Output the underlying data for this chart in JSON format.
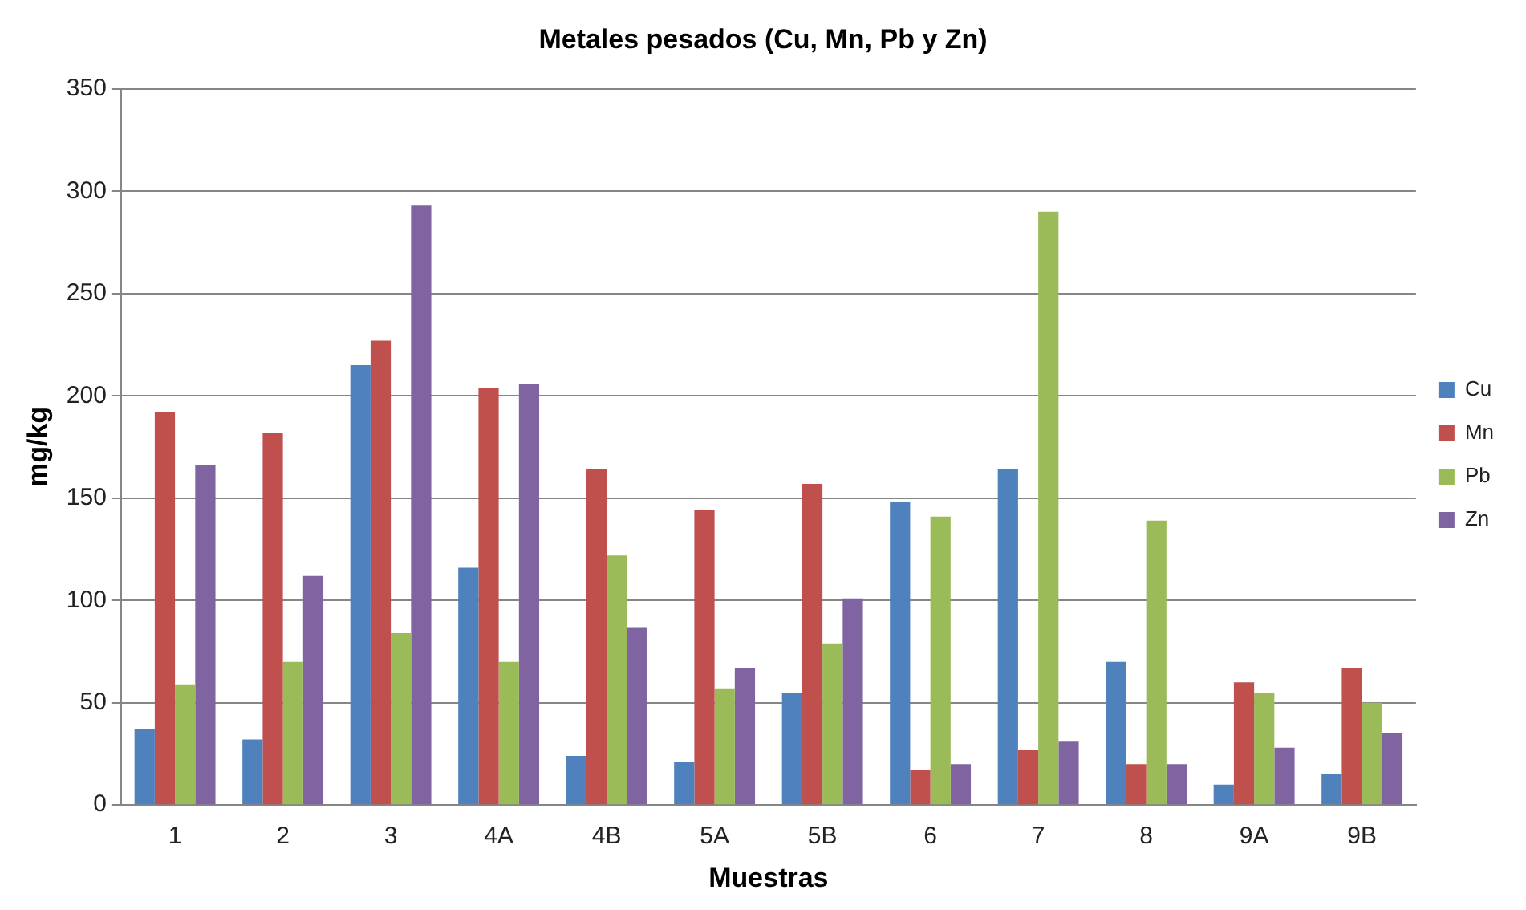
{
  "chart_data": {
    "type": "bar",
    "title": "Metales pesados (Cu, Mn, Pb y Zn)",
    "xlabel": "Muestras",
    "ylabel": "mg/kg",
    "categories": [
      "1",
      "2",
      "3",
      "4A",
      "4B",
      "5A",
      "5B",
      "6",
      "7",
      "8",
      "9A",
      "9B"
    ],
    "series": [
      {
        "name": "Cu",
        "color": "#4f81bd",
        "values": [
          37,
          32,
          215,
          116,
          24,
          21,
          55,
          148,
          164,
          70,
          10,
          15
        ]
      },
      {
        "name": "Mn",
        "color": "#c0504d",
        "values": [
          192,
          182,
          227,
          204,
          164,
          144,
          157,
          17,
          27,
          20,
          60,
          67
        ]
      },
      {
        "name": "Pb",
        "color": "#9bbb59",
        "values": [
          59,
          70,
          84,
          70,
          122,
          57,
          79,
          141,
          290,
          139,
          55,
          50
        ]
      },
      {
        "name": "Zn",
        "color": "#8064a2",
        "values": [
          166,
          112,
          293,
          206,
          87,
          67,
          101,
          20,
          31,
          20,
          28,
          35
        ]
      }
    ],
    "ylim": [
      0,
      350
    ],
    "yticks": [
      0,
      50,
      100,
      150,
      200,
      250,
      300,
      350
    ],
    "grid": "y",
    "legend": "right"
  }
}
